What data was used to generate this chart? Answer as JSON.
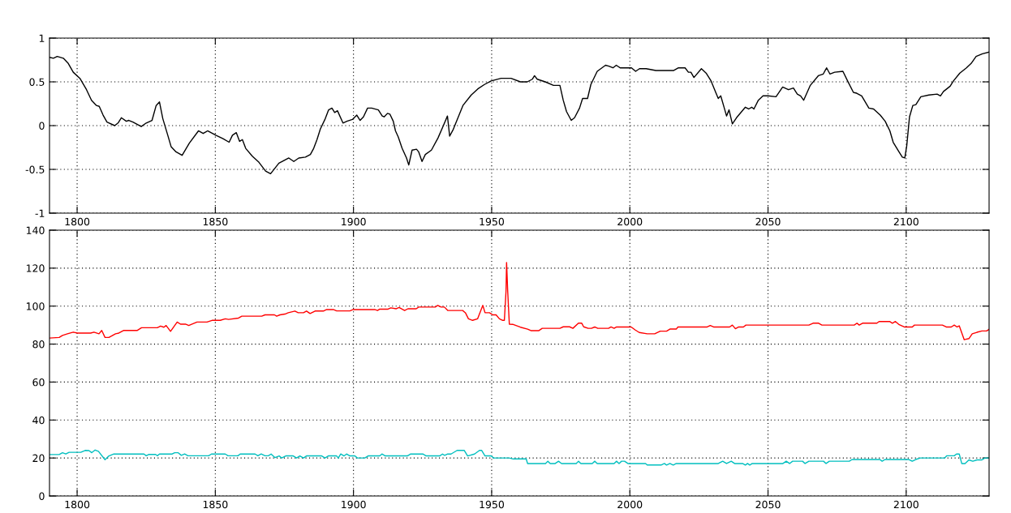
{
  "chart_data": [
    {
      "type": "line",
      "xlim": [
        1790,
        2130
      ],
      "xticks": [
        1800,
        1850,
        1900,
        1950,
        2000,
        2050,
        2100
      ],
      "ylim": [
        -1,
        1
      ],
      "yticks": [
        -1,
        -0.5,
        0,
        0.5,
        1
      ],
      "grid": true,
      "line_style": "solid",
      "series": [
        {
          "color": "#000000",
          "x": [
            1790,
            1791.4,
            1792.8,
            1795,
            1796.8,
            1798.6,
            1801,
            1803.4,
            1805.2,
            1807,
            1808,
            1809.4,
            1810.8,
            1813.6,
            1814.8,
            1816,
            1817.8,
            1818.7,
            1820.2,
            1823.2,
            1825,
            1827.1,
            1828.6,
            1829.8,
            1831,
            1832.8,
            1834,
            1835.8,
            1838,
            1840.6,
            1843.9,
            1845.6,
            1847.2,
            1850.2,
            1852.8,
            1855,
            1856.2,
            1857.6,
            1858.8,
            1859.8,
            1861,
            1863.4,
            1865.8,
            1868.2,
            1870,
            1873,
            1874.8,
            1876.6,
            1878.4,
            1880.2,
            1882.6,
            1884.4,
            1885.6,
            1886.8,
            1888,
            1889.8,
            1891,
            1892.2,
            1893.2,
            1894.2,
            1896.2,
            1897.6,
            1899.6,
            1901.2,
            1902.4,
            1903.6,
            1905.1,
            1906.6,
            1909,
            1910.4,
            1911.1,
            1912.3,
            1913.2,
            1914.4,
            1915.2,
            1916.2,
            1917.6,
            1919.2,
            1920,
            1921.2,
            1922.8,
            1923.6,
            1924.8,
            1926,
            1928.2,
            1930.6,
            1932.4,
            1934,
            1934.8,
            1936,
            1939.6,
            1942.6,
            1945,
            1947.4,
            1949.8,
            1953.4,
            1957,
            1960.4,
            1962.9,
            1964.7,
            1965.5,
            1966.5,
            1969.4,
            1972.4,
            1974.7,
            1975.9,
            1977.1,
            1978.8,
            1980,
            1981.8,
            1982.9,
            1984.7,
            1985.9,
            1988.2,
            1991.2,
            1992.4,
            1993.9,
            1995.1,
            1996.5,
            2000.6,
            2002.1,
            2003.5,
            2005.9,
            2009.4,
            2015.9,
            2017.6,
            2020,
            2021.2,
            2022.1,
            2023.2,
            2025.9,
            2027.6,
            2029.4,
            2031.2,
            2032,
            2032.9,
            2034.1,
            2035,
            2035.9,
            2037.1,
            2038.6,
            2041.8,
            2043,
            2044.1,
            2044.9,
            2046.5,
            2048.2,
            2050,
            2052.9,
            2055.3,
            2057.4,
            2059.2,
            2060.6,
            2061.8,
            2062.9,
            2065.3,
            2068.2,
            2070,
            2071.2,
            2072.4,
            2074.1,
            2077.1,
            2078.8,
            2080.9,
            2082.1,
            2083.9,
            2086.5,
            2088.2,
            2090.6,
            2092.4,
            2094.1,
            2095.3,
            2097.4,
            2098.6,
            2099.5,
            2100.2,
            2101.2,
            2102.4,
            2103.5,
            2105.3,
            2108.2,
            2111.2,
            2112.4,
            2113.5,
            2115.9,
            2117.1,
            2119.4,
            2121.8,
            2123.5,
            2125.3,
            2127.6,
            2130
          ],
          "values": [
            0.78,
            0.77,
            0.79,
            0.77,
            0.71,
            0.61,
            0.54,
            0.41,
            0.29,
            0.23,
            0.22,
            0.12,
            0.04,
            0.0,
            0.03,
            0.09,
            0.05,
            0.06,
            0.04,
            -0.01,
            0.03,
            0.06,
            0.23,
            0.27,
            0.08,
            -0.11,
            -0.24,
            -0.3,
            -0.34,
            -0.2,
            -0.06,
            -0.09,
            -0.06,
            -0.11,
            -0.15,
            -0.19,
            -0.11,
            -0.08,
            -0.18,
            -0.16,
            -0.26,
            -0.35,
            -0.42,
            -0.52,
            -0.55,
            -0.43,
            -0.4,
            -0.37,
            -0.41,
            -0.37,
            -0.36,
            -0.33,
            -0.26,
            -0.16,
            -0.04,
            0.08,
            0.18,
            0.2,
            0.15,
            0.17,
            0.03,
            0.05,
            0.07,
            0.12,
            0.06,
            0.1,
            0.2,
            0.2,
            0.18,
            0.11,
            0.1,
            0.14,
            0.13,
            0.05,
            -0.06,
            -0.13,
            -0.26,
            -0.37,
            -0.45,
            -0.28,
            -0.27,
            -0.3,
            -0.41,
            -0.33,
            -0.28,
            -0.14,
            -0.01,
            0.11,
            -0.12,
            -0.05,
            0.23,
            0.35,
            0.42,
            0.47,
            0.51,
            0.54,
            0.54,
            0.5,
            0.5,
            0.53,
            0.57,
            0.53,
            0.5,
            0.46,
            0.46,
            0.29,
            0.16,
            0.06,
            0.09,
            0.2,
            0.31,
            0.31,
            0.47,
            0.62,
            0.69,
            0.68,
            0.66,
            0.69,
            0.66,
            0.66,
            0.62,
            0.65,
            0.65,
            0.63,
            0.63,
            0.66,
            0.66,
            0.61,
            0.61,
            0.55,
            0.65,
            0.6,
            0.51,
            0.37,
            0.31,
            0.34,
            0.21,
            0.11,
            0.18,
            0.02,
            0.09,
            0.21,
            0.19,
            0.21,
            0.19,
            0.29,
            0.34,
            0.34,
            0.33,
            0.44,
            0.41,
            0.43,
            0.36,
            0.34,
            0.29,
            0.46,
            0.57,
            0.59,
            0.66,
            0.59,
            0.61,
            0.62,
            0.51,
            0.38,
            0.37,
            0.34,
            0.2,
            0.19,
            0.12,
            0.05,
            -0.06,
            -0.19,
            -0.3,
            -0.36,
            -0.37,
            -0.23,
            0.1,
            0.23,
            0.24,
            0.33,
            0.35,
            0.36,
            0.34,
            0.39,
            0.45,
            0.51,
            0.6,
            0.66,
            0.71,
            0.79,
            0.82,
            0.84
          ]
        }
      ]
    },
    {
      "type": "line",
      "xlim": [
        1790,
        2130
      ],
      "xticks": [
        1800,
        1850,
        1900,
        1950,
        2000,
        2050,
        2100
      ],
      "ylim": [
        0,
        140
      ],
      "yticks": [
        0,
        20,
        40,
        60,
        80,
        100,
        120,
        140
      ],
      "grid": true,
      "line_style": "solid",
      "series": [
        {
          "color": "#ff0000",
          "x": [
            1790.1,
            1793.5,
            1794.7,
            1796.5,
            1798.6,
            1800.1,
            1804.9,
            1806.1,
            1807.9,
            1808.9,
            1810.1,
            1811.5,
            1813.9,
            1815.1,
            1816.9,
            1821.8,
            1823.3,
            1829,
            1830.2,
            1831.4,
            1832.2,
            1833.8,
            1836.2,
            1837.4,
            1839.2,
            1840.4,
            1841.6,
            1843.4,
            1847,
            1848.8,
            1851.8,
            1853.6,
            1854.8,
            1858.4,
            1859.6,
            1866.8,
            1868,
            1871.4,
            1872.2,
            1873.4,
            1875.2,
            1876.4,
            1878.8,
            1880,
            1881.9,
            1883,
            1884.3,
            1886.1,
            1889.1,
            1890.3,
            1892.7,
            1893.9,
            1898.7,
            1899.9,
            1907.7,
            1908.7,
            1909.5,
            1912.5,
            1913.5,
            1915.5,
            1916.5,
            1918.5,
            1919.7,
            1922.7,
            1923.6,
            1929.6,
            1930.5,
            1931.7,
            1932.9,
            1934.1,
            1939.5,
            1940.5,
            1941.6,
            1943.1,
            1944.9,
            1946.8,
            1947.6,
            1949.2,
            1950.4,
            1951.6,
            1952.8,
            1954,
            1954.6,
            1955.2,
            1955.4,
            1955.8,
            1956.4,
            1957.6,
            1960.4,
            1963,
            1964.2,
            1967.1,
            1968.3,
            1974.7,
            1975.9,
            1978.2,
            1979.4,
            1981.4,
            1982.6,
            1983.3,
            1984.9,
            1986.1,
            1987.3,
            1988.4,
            1992.3,
            1993.2,
            1994.3,
            1995.2,
            2000.5,
            2002,
            2003.4,
            2006.3,
            2009,
            2011,
            2013.3,
            2014.5,
            2016.8,
            2017.4,
            2028,
            2029.1,
            2030.3,
            2036.1,
            2037.1,
            2038.2,
            2039.4,
            2041.1,
            2042,
            2064.8,
            2066.3,
            2068.3,
            2069.5,
            2081.2,
            2082.2,
            2083,
            2084.2,
            2089.4,
            2090.2,
            2094,
            2095,
            2096.1,
            2097.5,
            2099.3,
            2102.2,
            2103,
            2113.1,
            2114.5,
            2116.3,
            2117.4,
            2118.4,
            2119.2,
            2121,
            2122.7,
            2123.9,
            2125.6,
            2127.4,
            2129.1,
            2130
          ],
          "values": [
            83.2,
            83.5,
            84.6,
            85.4,
            86.3,
            85.8,
            85.8,
            86.3,
            85.4,
            87.2,
            83.5,
            83.5,
            85.4,
            85.8,
            87.2,
            87.2,
            88.6,
            88.6,
            89.5,
            88.9,
            89.8,
            86.7,
            91.6,
            90.5,
            90.5,
            89.8,
            90.5,
            91.6,
            91.6,
            92.5,
            92.5,
            93.3,
            93,
            93.7,
            94.7,
            94.7,
            95.4,
            95.4,
            94.7,
            95.4,
            95.8,
            96.5,
            97.4,
            96.5,
            96.5,
            97.4,
            96.1,
            97.4,
            97.4,
            98.2,
            98.2,
            97.5,
            97.5,
            98.2,
            98.2,
            97.7,
            98.4,
            98.4,
            99.1,
            98.6,
            99.3,
            97.7,
            98.6,
            98.6,
            99.5,
            99.5,
            100.4,
            99.5,
            99.5,
            97.7,
            97.7,
            96.5,
            93.3,
            92.5,
            93.3,
            100.4,
            96.5,
            96.5,
            95.4,
            95.4,
            93.3,
            92.5,
            92.5,
            108,
            123,
            108,
            90.5,
            90.4,
            88.9,
            87.9,
            87.1,
            87.1,
            88.3,
            88.3,
            89.1,
            89.1,
            88.3,
            91,
            91,
            89.1,
            88.3,
            88.3,
            89,
            88.3,
            88.3,
            89,
            88.3,
            89,
            89,
            87.4,
            86.1,
            85.4,
            85.4,
            86.8,
            86.8,
            87.9,
            87.9,
            89,
            89,
            89.8,
            89,
            89,
            90,
            88.1,
            89,
            89,
            90,
            90,
            91,
            91,
            90,
            90,
            91,
            90,
            91,
            91,
            91.9,
            91.9,
            91,
            91.9,
            90.2,
            89,
            89,
            90,
            90,
            89,
            89,
            90,
            89,
            89.6,
            82.3,
            82.9,
            85.4,
            86.2,
            86.9,
            86.9,
            87.8
          ]
        },
        {
          "color": "#00bfbf",
          "x": [
            1790.1,
            1793.5,
            1794.7,
            1795.9,
            1797.1,
            1801.3,
            1802.9,
            1804.3,
            1805.3,
            1806.5,
            1807.7,
            1810.1,
            1811.5,
            1813.3,
            1824.2,
            1825,
            1826,
            1828.4,
            1829,
            1829.8,
            1834.4,
            1835.3,
            1836.5,
            1837.7,
            1838.9,
            1840.1,
            1847.6,
            1848.6,
            1853.6,
            1854.6,
            1858.2,
            1859,
            1864.4,
            1865.4,
            1866.6,
            1868,
            1869.2,
            1870.2,
            1871.6,
            1873.1,
            1874,
            1875.5,
            1878.2,
            1879.4,
            1880.6,
            1881.9,
            1883,
            1888.5,
            1889.7,
            1890.9,
            1893.9,
            1894.5,
            1895.4,
            1896.6,
            1897.5,
            1898.7,
            1900.5,
            1901.4,
            1904.1,
            1905.3,
            1909.5,
            1910.3,
            1911.5,
            1919.5,
            1920.7,
            1925.1,
            1926.3,
            1931.2,
            1932.2,
            1933,
            1934.1,
            1935.3,
            1937.5,
            1940.1,
            1941.3,
            1943.8,
            1945.6,
            1946.4,
            1947.6,
            1949.8,
            1950.7,
            1956.4,
            1957.8,
            1962.5,
            1963,
            1969.5,
            1970.3,
            1971.2,
            1973,
            1974.2,
            1975.3,
            1980.6,
            1981.4,
            1982.3,
            1986.4,
            1987.3,
            1988.2,
            1994.3,
            1995.2,
            1996.1,
            1997,
            1998.1,
            1999.3,
            2005.7,
            2006.3,
            2011.3,
            2012.5,
            2013.3,
            2014.5,
            2015.7,
            2016.8,
            2032,
            2033.6,
            2035,
            2036.7,
            2037.9,
            2040.8,
            2041.8,
            2042.6,
            2043.4,
            2044.3,
            2055.4,
            2056.6,
            2057.8,
            2058.9,
            2062.5,
            2063.4,
            2064.8,
            2066,
            2070.1,
            2071,
            2072.2,
            2079.4,
            2080.4,
            2090.5,
            2091.3,
            2092.3,
            2101,
            2102.2,
            2103.4,
            2105.1,
            2113.9,
            2114.7,
            2117.4,
            2118.2,
            2119.2,
            2120.1,
            2121.3,
            2122.7,
            2124.1,
            2125.6,
            2127.4,
            2128.5,
            2130
          ],
          "values": [
            21.8,
            21.8,
            22.8,
            22.1,
            23,
            23,
            24,
            23.9,
            22.8,
            24.2,
            23.5,
            19.1,
            21.1,
            22.1,
            22.1,
            21.2,
            21.9,
            21.9,
            21.2,
            22.1,
            22.1,
            22.8,
            22.8,
            21.4,
            22.1,
            21.2,
            21.2,
            22.1,
            22.1,
            21.2,
            21.2,
            22.1,
            22.1,
            21.2,
            22.1,
            21.2,
            21.2,
            22.1,
            20.2,
            21.1,
            20,
            21.1,
            21.1,
            20,
            21.1,
            20,
            21.1,
            21.1,
            20,
            21.1,
            21.1,
            20,
            22.1,
            21.1,
            22.1,
            21.1,
            21.1,
            20,
            20,
            21.1,
            21.1,
            22.1,
            21.1,
            21.1,
            22.1,
            22.1,
            21.1,
            21.1,
            22.1,
            21.4,
            22.1,
            22.1,
            24,
            24,
            21.1,
            22.1,
            24,
            24,
            21.1,
            21.1,
            20,
            20,
            19.5,
            19.5,
            17.1,
            17.1,
            18.3,
            17.1,
            17.1,
            18.3,
            17.1,
            17.1,
            18.3,
            17.1,
            17.1,
            18.3,
            17.1,
            17.1,
            18.3,
            17.1,
            18.3,
            18.3,
            17.1,
            17.1,
            16.3,
            16.3,
            17.1,
            16.3,
            17.1,
            16.3,
            17.1,
            17.1,
            18.3,
            17.1,
            18.3,
            17.1,
            17.1,
            16.3,
            17.1,
            16.3,
            17.1,
            17.1,
            18.3,
            17.1,
            18.3,
            18.3,
            17.1,
            18.3,
            18.3,
            18.3,
            17.1,
            18.3,
            18.3,
            19.2,
            19.2,
            18.3,
            19.2,
            19.2,
            18.3,
            19.2,
            20,
            20,
            21.2,
            21.2,
            22.1,
            22.1,
            17.1,
            17.1,
            19,
            18.3,
            19,
            19,
            20,
            20
          ]
        }
      ]
    }
  ]
}
